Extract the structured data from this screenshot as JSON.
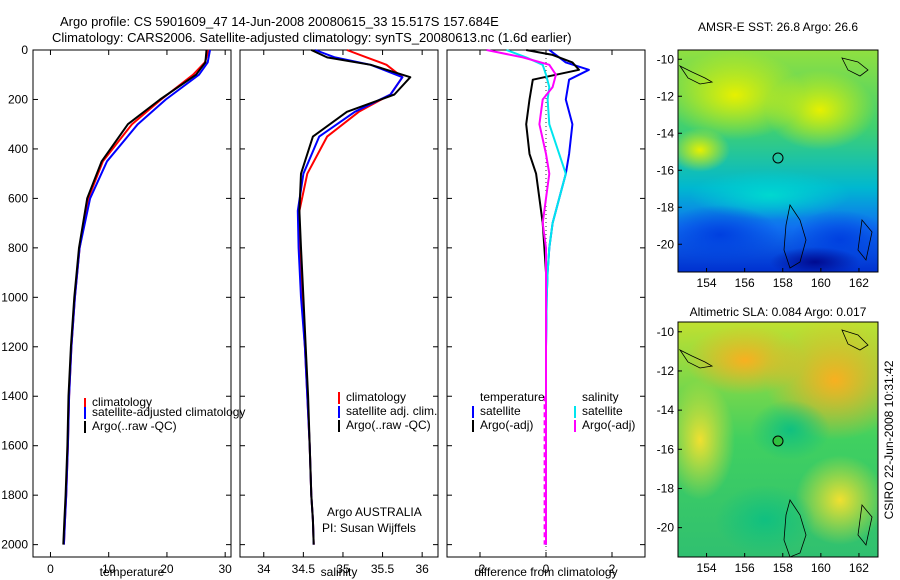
{
  "header": {
    "title_line1": "Argo profile: CS 5901609_47 14-Jun-2008 20080615_33 15.517S 157.684E",
    "title_line2": "Climatology: CARS2006. Satellite-adjusted climatology: synTS_20080613.nc (1.6d earlier)"
  },
  "colors": {
    "climatology": "#ff0000",
    "satellite": "#0000ff",
    "argo": "#000000",
    "salinity_satellite": "#00e5ee",
    "salinity_argo": "#ff00ff"
  },
  "footer": {
    "owner_line1": "Argo AUSTRALIA",
    "owner_line2": "PI: Susan Wijffels",
    "stamp": "CSIRO 22-Jun-2008 10:31:42"
  },
  "chart_data": [
    {
      "id": "temperature",
      "type": "line",
      "xlabel": "temperature",
      "ylabel": "",
      "xlim": [
        -3,
        31
      ],
      "ylim": [
        2050,
        0
      ],
      "xticks": [
        0,
        10,
        20,
        30
      ],
      "yticks": [
        0,
        200,
        400,
        600,
        800,
        1000,
        1200,
        1400,
        1600,
        1800,
        2000
      ],
      "legend": [
        "climatology",
        "satellite-adjusted climatology",
        "Argo(..raw -QC)"
      ],
      "series": [
        {
          "name": "climatology",
          "color": "#ff0000",
          "x": [
            27.2,
            26.5,
            24.5,
            19.0,
            14.0,
            9.0,
            6.5,
            5.0,
            4.2,
            3.6,
            3.2,
            3.0,
            2.7,
            2.5,
            2.3
          ],
          "y": [
            0,
            50,
            100,
            200,
            300,
            450,
            600,
            800,
            1000,
            1200,
            1400,
            1600,
            1800,
            1900,
            2000
          ]
        },
        {
          "name": "satellite-adjusted climatology",
          "color": "#0000ff",
          "x": [
            27.4,
            27.0,
            25.5,
            19.8,
            15.0,
            9.7,
            6.8,
            5.0,
            4.2,
            3.6,
            3.2,
            3.0,
            2.7,
            2.5,
            2.3
          ],
          "y": [
            0,
            50,
            100,
            200,
            300,
            450,
            600,
            800,
            1000,
            1200,
            1400,
            1600,
            1800,
            1900,
            2000
          ]
        },
        {
          "name": "Argo(..raw -QC)",
          "color": "#000000",
          "x": [
            26.8,
            26.6,
            25.0,
            18.8,
            13.3,
            8.8,
            6.3,
            4.9,
            4.1,
            3.5,
            3.1,
            2.9,
            2.6,
            2.4,
            2.2
          ],
          "y": [
            0,
            50,
            100,
            200,
            300,
            450,
            600,
            800,
            1000,
            1200,
            1400,
            1600,
            1800,
            1900,
            2000
          ]
        }
      ]
    },
    {
      "id": "salinity",
      "type": "line",
      "xlabel": "salinity",
      "ylabel": "",
      "xlim": [
        33.7,
        36.2
      ],
      "ylim": [
        2050,
        0
      ],
      "xticks": [
        34,
        34.5,
        35,
        35.5,
        36
      ],
      "legend": [
        "climatology",
        "satellite adj. clim.",
        "Argo(..raw -QC)"
      ],
      "series": [
        {
          "name": "climatology",
          "color": "#ff0000",
          "x": [
            35.05,
            35.3,
            35.55,
            35.75,
            35.6,
            35.2,
            34.8,
            34.55,
            34.45,
            34.45,
            34.48,
            34.52,
            34.55,
            34.58,
            34.6,
            34.62,
            34.63
          ],
          "y": [
            0,
            30,
            60,
            110,
            180,
            250,
            350,
            500,
            650,
            800,
            1000,
            1200,
            1400,
            1600,
            1800,
            1900,
            2000
          ]
        },
        {
          "name": "satellite adj. clim.",
          "color": "#0000ff",
          "x": [
            34.65,
            34.9,
            35.35,
            35.75,
            35.6,
            35.15,
            34.7,
            34.5,
            34.43,
            34.44,
            34.47,
            34.52,
            34.55,
            34.58,
            34.6,
            34.62,
            34.63
          ],
          "y": [
            0,
            30,
            60,
            110,
            180,
            250,
            350,
            500,
            650,
            800,
            1000,
            1200,
            1400,
            1600,
            1800,
            1900,
            2000
          ]
        },
        {
          "name": "Argo(..raw -QC)",
          "color": "#000000",
          "x": [
            34.6,
            34.8,
            35.35,
            35.85,
            35.65,
            35.05,
            34.62,
            34.47,
            34.45,
            34.47,
            34.5,
            34.53,
            34.56,
            34.58,
            34.6,
            34.62,
            34.63
          ],
          "y": [
            0,
            30,
            60,
            110,
            180,
            250,
            350,
            500,
            650,
            800,
            1000,
            1200,
            1400,
            1600,
            1800,
            1900,
            2000
          ]
        }
      ]
    },
    {
      "id": "difference",
      "type": "line",
      "xlabel": "difference from climatology",
      "ylabel": "",
      "xlim": [
        -3,
        3
      ],
      "ylim": [
        2050,
        0
      ],
      "xticks": [
        -2,
        0,
        2
      ],
      "legend_titles": [
        "temperature",
        "salinity"
      ],
      "legend": [
        "satellite",
        "Argo(-adj)",
        "satellite",
        "Argo(-adj)"
      ],
      "series": [
        {
          "name": "temperature satellite",
          "color": "#0000ff",
          "x": [
            0.1,
            0.3,
            0.6,
            1.3,
            0.7,
            0.6,
            0.8,
            0.7,
            0.6,
            0.4,
            0.2,
            0.1,
            0.05,
            0.02,
            0.0,
            0.0,
            0.0,
            0.0,
            0.0
          ],
          "y": [
            0,
            20,
            50,
            80,
            120,
            200,
            300,
            420,
            500,
            600,
            700,
            800,
            900,
            1000,
            1200,
            1400,
            1600,
            1800,
            2000
          ]
        },
        {
          "name": "temperature Argo(-adj)",
          "color": "#000000",
          "x": [
            -0.6,
            0.2,
            0.8,
            1.0,
            -0.4,
            -0.5,
            -0.6,
            -0.5,
            -0.3,
            -0.2,
            -0.1,
            -0.05,
            0.0,
            0.0,
            0.0,
            0.0,
            0.0,
            0.0,
            0.0
          ],
          "y": [
            0,
            20,
            50,
            80,
            120,
            200,
            300,
            420,
            500,
            600,
            700,
            800,
            900,
            1000,
            1200,
            1400,
            1600,
            1800,
            2000
          ]
        },
        {
          "name": "salinity satellite",
          "color": "#00e5ee",
          "x": [
            -1.2,
            -0.6,
            -0.1,
            0.0,
            0.1,
            0.05,
            0.1,
            0.4,
            0.6,
            0.4,
            0.2,
            0.1,
            0.05,
            0.02,
            0.0,
            0.0,
            0.0,
            0.0
          ],
          "y": [
            0,
            30,
            60,
            100,
            150,
            200,
            300,
            420,
            500,
            600,
            700,
            800,
            900,
            1000,
            1200,
            1400,
            1600,
            2000
          ]
        },
        {
          "name": "salinity Argo(-adj)",
          "color": "#ff00ff",
          "x": [
            -1.8,
            -0.7,
            0.1,
            0.3,
            0.2,
            -0.1,
            -0.2,
            0.0,
            0.1,
            0.0,
            -0.1,
            0.0,
            0.0,
            0.0,
            0.0,
            0.0,
            0.0,
            0.0
          ],
          "y": [
            0,
            30,
            60,
            100,
            150,
            200,
            300,
            420,
            500,
            600,
            700,
            800,
            900,
            1000,
            1200,
            1400,
            1600,
            2000
          ]
        }
      ]
    },
    {
      "id": "sst-map",
      "type": "heatmap",
      "title": "AMSR-E SST: 26.8  Argo: 26.6",
      "xlim": [
        152.5,
        163
      ],
      "ylim": [
        -21.5,
        -9.5
      ],
      "xticks": [
        154,
        156,
        158,
        160,
        162
      ],
      "yticks": [
        -10,
        -12,
        -14,
        -16,
        -18,
        -20
      ],
      "argo_position": {
        "lon": 157.7,
        "lat": -15.5
      }
    },
    {
      "id": "sla-map",
      "type": "heatmap",
      "title": "Altimetric SLA: 0.084  Argo: 0.017",
      "xlim": [
        152.5,
        163
      ],
      "ylim": [
        -21.5,
        -9.5
      ],
      "xticks": [
        154,
        156,
        158,
        160,
        162
      ],
      "yticks": [
        -10,
        -12,
        -14,
        -16,
        -18,
        -20
      ],
      "argo_position": {
        "lon": 157.7,
        "lat": -15.5
      }
    }
  ]
}
